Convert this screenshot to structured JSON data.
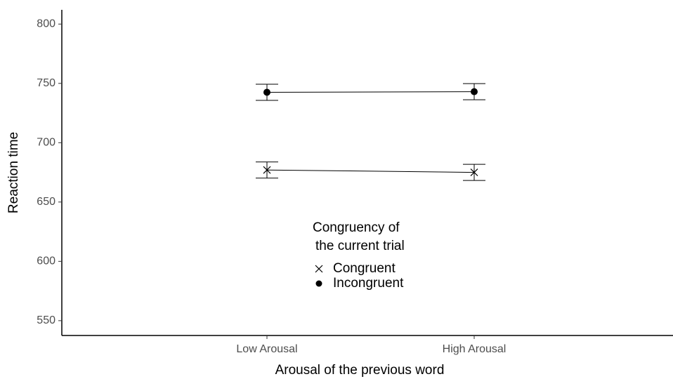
{
  "chart_data": {
    "type": "line",
    "categories": [
      "Low Arousal",
      "High Arousal"
    ],
    "x_label": "Arousal of the previous word",
    "y_label": "Reaction time",
    "series": [
      {
        "name": "Congruent",
        "marker": "x",
        "color": "#000000",
        "values": [
          677,
          675
        ],
        "errors": [
          6.8,
          6.8
        ]
      },
      {
        "name": "Incongruent",
        "marker": "circle",
        "color": "#000000",
        "values": [
          742.5,
          743
        ],
        "errors": [
          6.8,
          6.8
        ]
      }
    ],
    "ylim": [
      537.5,
      812
    ],
    "yticks": [
      550,
      600,
      650,
      700,
      750,
      800
    ],
    "legend_title": [
      "Congruency of",
      "the current trial"
    ],
    "legend_position": "inside-bottom-center",
    "grid": false
  }
}
